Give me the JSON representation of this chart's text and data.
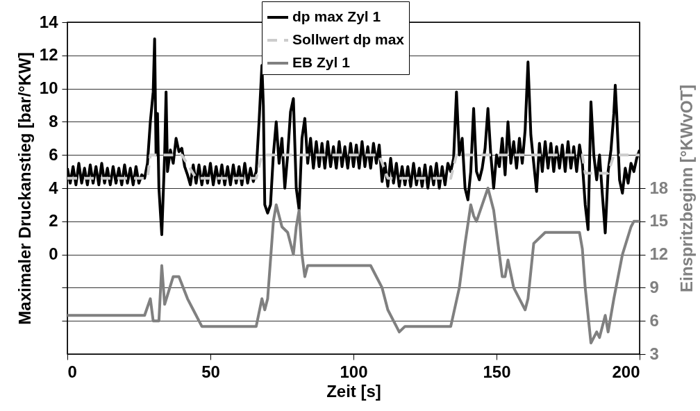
{
  "chart_data": {
    "type": "line",
    "xlabel": "Zeit [s]",
    "ylabel": "Maximaler Druckanstieg [bar/°KW]",
    "y2label": "Einspritzbeginn [°KWvOT]",
    "xlim": [
      0,
      200
    ],
    "xticks": [
      0,
      50,
      100,
      150,
      200
    ],
    "ylim": [
      -6,
      14
    ],
    "yticks": [
      {
        "value": -4,
        "label": null
      },
      {
        "value": -2,
        "label": null
      },
      0,
      2,
      4,
      6,
      8,
      10,
      12,
      14
    ],
    "y2lim": [
      3,
      33
    ],
    "y2ticks": [
      3,
      6,
      9,
      12,
      15,
      18
    ],
    "grid": "y",
    "legend": "top",
    "marker": "none",
    "series": [
      {
        "name": "dp max Zyl 1",
        "color": "#000000",
        "line_style": "solid",
        "x": [
          0,
          1,
          2,
          3,
          4,
          5,
          6,
          7,
          8,
          9,
          10,
          11,
          12,
          13,
          14,
          15,
          16,
          17,
          18,
          19,
          20,
          21,
          22,
          23,
          24,
          25,
          26,
          27,
          28,
          29,
          30,
          30.5,
          31,
          31.5,
          32,
          33,
          34,
          34.5,
          35,
          36,
          37,
          38,
          39,
          40,
          41,
          42,
          43,
          44,
          45,
          46,
          47,
          48,
          49,
          50,
          51,
          52,
          53,
          54,
          55,
          56,
          57,
          58,
          59,
          60,
          61,
          62,
          63,
          64,
          65,
          66,
          67,
          68,
          68.5,
          69,
          70,
          71,
          72,
          73,
          74,
          75,
          76,
          77,
          78,
          79,
          80,
          81,
          82,
          83,
          84,
          85,
          86,
          87,
          88,
          89,
          90,
          91,
          92,
          93,
          94,
          95,
          96,
          97,
          98,
          99,
          100,
          101,
          102,
          103,
          104,
          105,
          106,
          107,
          108,
          109,
          110,
          111,
          112,
          113,
          114,
          115,
          116,
          117,
          118,
          119,
          120,
          121,
          122,
          123,
          124,
          125,
          126,
          127,
          128,
          129,
          130,
          131,
          132,
          133,
          134,
          135,
          136,
          137,
          138,
          139,
          140,
          141,
          142,
          143,
          144,
          145,
          146,
          147,
          148,
          149,
          150,
          151,
          152,
          153,
          154,
          155,
          156,
          157,
          158,
          159,
          160,
          161,
          162,
          163,
          164,
          165,
          166,
          167,
          168,
          169,
          170,
          171,
          172,
          173,
          174,
          175,
          176,
          177,
          178,
          179,
          180,
          181,
          182,
          183,
          184,
          185,
          186,
          187,
          188,
          189,
          190,
          191,
          191.5,
          192,
          193,
          194,
          195,
          196,
          197,
          198,
          199,
          200
        ],
        "values": [
          5.2,
          4.3,
          5.3,
          4.2,
          5.5,
          4.3,
          5.2,
          4.2,
          5.4,
          4.3,
          5.3,
          4.2,
          5.5,
          4.3,
          5.2,
          4.2,
          5.3,
          4.3,
          5.2,
          4.2,
          5.4,
          4.3,
          5.2,
          4.2,
          5.3,
          4.3,
          4.8,
          4.6,
          5.5,
          8,
          9.8,
          13,
          6,
          8.5,
          4,
          1.2,
          6,
          9.8,
          5,
          6.3,
          5.5,
          7,
          6.2,
          6.4,
          5.3,
          4.8,
          4.2,
          5.4,
          4.3,
          5.4,
          4.2,
          5.3,
          4.3,
          5.5,
          4.2,
          5.3,
          4.3,
          5.4,
          4.2,
          5.3,
          4.2,
          5.4,
          4.3,
          5.3,
          4.2,
          5.5,
          4.3,
          5.2,
          4.4,
          5,
          8,
          11.4,
          9,
          3,
          2.5,
          3,
          6,
          8,
          5.5,
          7,
          4,
          6,
          8.6,
          9.4,
          4,
          2.7,
          7,
          8.2,
          5.5,
          7,
          5.2,
          6.8,
          5.3,
          6.7,
          5.2,
          6.8,
          5.3,
          6.5,
          5.2,
          6.8,
          5.3,
          6.5,
          5.2,
          6.7,
          5.3,
          6.6,
          5.2,
          6.8,
          5.3,
          6.5,
          5.2,
          6.7,
          5.5,
          6.6,
          4.4,
          5.5,
          4.1,
          5.8,
          4.3,
          5.5,
          4.1,
          5.3,
          4.2,
          5.3,
          4.1,
          5.5,
          4.2,
          5.2,
          4.1,
          5.4,
          4,
          5.3,
          4.2,
          5.5,
          4,
          5.3,
          4.2,
          5.5,
          5,
          5.8,
          9.8,
          6,
          7,
          4,
          3.3,
          5,
          8.8,
          5,
          4.5,
          5.2,
          6.4,
          8.8,
          6,
          4,
          6,
          5.3,
          7,
          4.8,
          8,
          5.5,
          6.8,
          5.2,
          7,
          5.5,
          7.5,
          11.6,
          7.2,
          5.5,
          3.8,
          6.7,
          5,
          6.8,
          5.2,
          6.7,
          5,
          6.5,
          5.2,
          6.6,
          5,
          6.8,
          5.2,
          6.5,
          5,
          6.6,
          5.5,
          3,
          1.5,
          9.2,
          6,
          4.5,
          6,
          3.6,
          1.3,
          5,
          6.3,
          8.5,
          10.2,
          8.5,
          4.5,
          3.7,
          5.2,
          4.3,
          5.5,
          5,
          5.8,
          6.3
        ]
      },
      {
        "name": "Sollwert dp max",
        "color": "#cccccc",
        "line_style": "dashed",
        "x": [
          0,
          28,
          29,
          40,
          45,
          66,
          68,
          109,
          112,
          134,
          136,
          180,
          181,
          189,
          191,
          200
        ],
        "values": [
          4.6,
          4.6,
          6,
          6,
          4.6,
          4.6,
          6,
          6,
          4.6,
          4.6,
          6,
          6,
          4.9,
          4.9,
          6,
          6
        ]
      },
      {
        "name": "EB Zyl 1",
        "color": "#808080",
        "line_style": "solid",
        "axis": "y2",
        "x": [
          0,
          27,
          29,
          30,
          32,
          33,
          34,
          37,
          39,
          42,
          44,
          46,
          47,
          66,
          68,
          69,
          70,
          72,
          73,
          75,
          77,
          79,
          80,
          81,
          82,
          83,
          84,
          86,
          106,
          107,
          110,
          112,
          115,
          116,
          118,
          134,
          137,
          139,
          141,
          142,
          143,
          145,
          147,
          149,
          152,
          153,
          154,
          156,
          158,
          160,
          161,
          163,
          165,
          167,
          179,
          180,
          181,
          183,
          185,
          186,
          188,
          189,
          191,
          194,
          197,
          198,
          200
        ],
        "values": [
          6.5,
          6.5,
          8,
          6,
          6,
          11,
          7.5,
          10,
          10,
          8,
          7,
          6,
          5.5,
          5.5,
          8,
          7,
          8,
          15,
          16.5,
          14.5,
          14,
          12,
          14.5,
          16,
          12,
          10,
          11,
          11,
          11,
          10.5,
          9,
          7,
          5.5,
          5,
          5.5,
          5.5,
          9,
          13,
          16.5,
          15.5,
          15,
          16.5,
          18,
          16,
          10,
          10,
          11.5,
          9,
          8,
          7,
          8,
          13,
          13.5,
          14,
          14,
          12.5,
          9,
          4,
          5,
          4.5,
          6.5,
          5,
          8,
          12,
          14.5,
          15,
          15
        ]
      }
    ]
  }
}
